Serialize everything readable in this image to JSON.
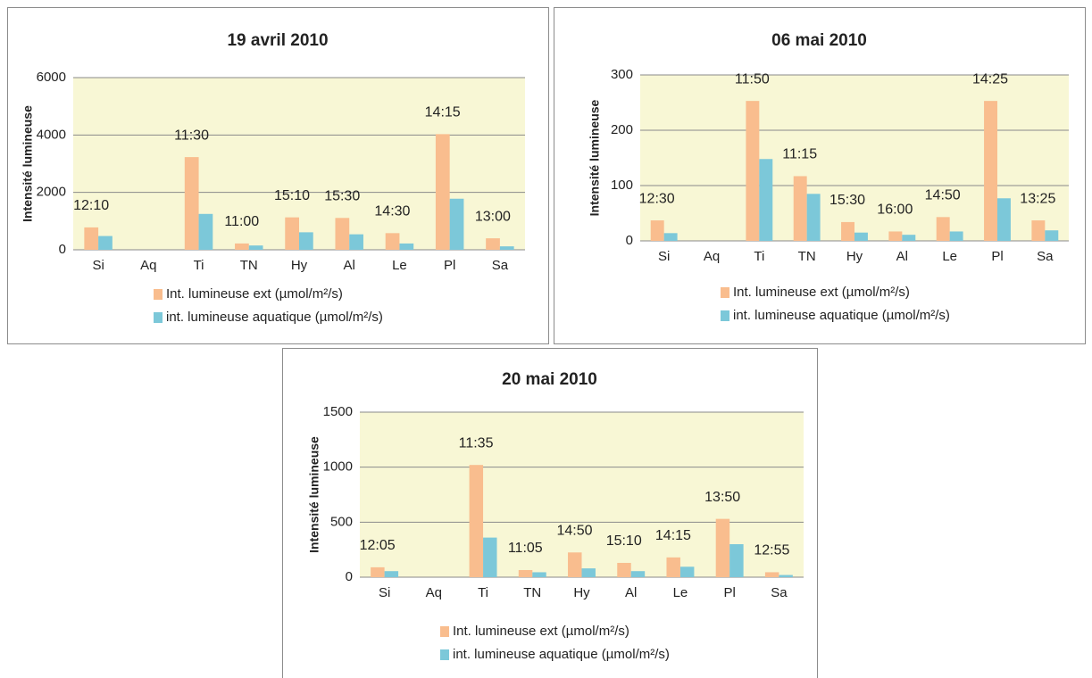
{
  "chart_data": [
    {
      "type": "bar",
      "title": "19 avril 2010",
      "y_label": "Intensité lumineuse",
      "categories": [
        "Si",
        "Aq",
        "Ti",
        "TN",
        "Hy",
        "Al",
        "Le",
        "Pl",
        "Sa"
      ],
      "series": [
        {
          "name": "Int. lumineuse ext (µmol/m²/s)",
          "color": "#f9bd8e",
          "values": [
            780,
            null,
            3230,
            220,
            1130,
            1110,
            580,
            4030,
            400
          ]
        },
        {
          "name": "int. lumineuse aquatique (µmol/m²/s)",
          "color": "#7cc8d9",
          "values": [
            480,
            null,
            1250,
            150,
            610,
            540,
            220,
            1780,
            120
          ]
        }
      ],
      "annotations": [
        "12:10",
        null,
        "11:30",
        "11:00",
        "15:10",
        "15:30",
        "14:30",
        "14:15",
        "13:00"
      ],
      "ylim": [
        0,
        6000
      ],
      "yticks": [
        0,
        2000,
        4000,
        6000
      ],
      "grid": true
    },
    {
      "type": "bar",
      "title": "06 mai 2010",
      "y_label": "Intensité lumineuse",
      "categories": [
        "Si",
        "Aq",
        "Ti",
        "TN",
        "Hy",
        "Al",
        "Le",
        "Pl",
        "Sa"
      ],
      "series": [
        {
          "name": "Int. lumineuse ext (µmol/m²/s)",
          "color": "#f9bd8e",
          "values": [
            37,
            null,
            253,
            117,
            34,
            17,
            43,
            253,
            37
          ]
        },
        {
          "name": "int. lumineuse aquatique (µmol/m²/s)",
          "color": "#7cc8d9",
          "values": [
            14,
            null,
            148,
            85,
            15,
            11,
            17,
            77,
            19
          ]
        }
      ],
      "annotations": [
        "12:30",
        null,
        "11:50",
        "11:15",
        "15:30",
        "16:00",
        "14:50",
        "14:25",
        "13:25"
      ],
      "ylim": [
        0,
        300
      ],
      "yticks": [
        0,
        100,
        200,
        300
      ],
      "grid": true
    },
    {
      "type": "bar",
      "title": "20 mai 2010",
      "y_label": "Intensité lumineuse",
      "categories": [
        "Si",
        "Aq",
        "Ti",
        "TN",
        "Hy",
        "Al",
        "Le",
        "Pl",
        "Sa"
      ],
      "series": [
        {
          "name": "Int. lumineuse ext (µmol/m²/s)",
          "color": "#f9bd8e",
          "values": [
            90,
            null,
            1020,
            65,
            225,
            130,
            180,
            530,
            45
          ]
        },
        {
          "name": "int. lumineuse aquatique (µmol/m²/s)",
          "color": "#7cc8d9",
          "values": [
            55,
            null,
            360,
            45,
            80,
            55,
            95,
            300,
            20
          ]
        }
      ],
      "annotations": [
        "12:05",
        null,
        "11:35",
        "11:05",
        "14:50",
        "15:10",
        "14:15",
        "13:50",
        "12:55"
      ],
      "ylim": [
        0,
        1500
      ],
      "yticks": [
        0,
        500,
        1000,
        1500
      ],
      "grid": true
    }
  ]
}
